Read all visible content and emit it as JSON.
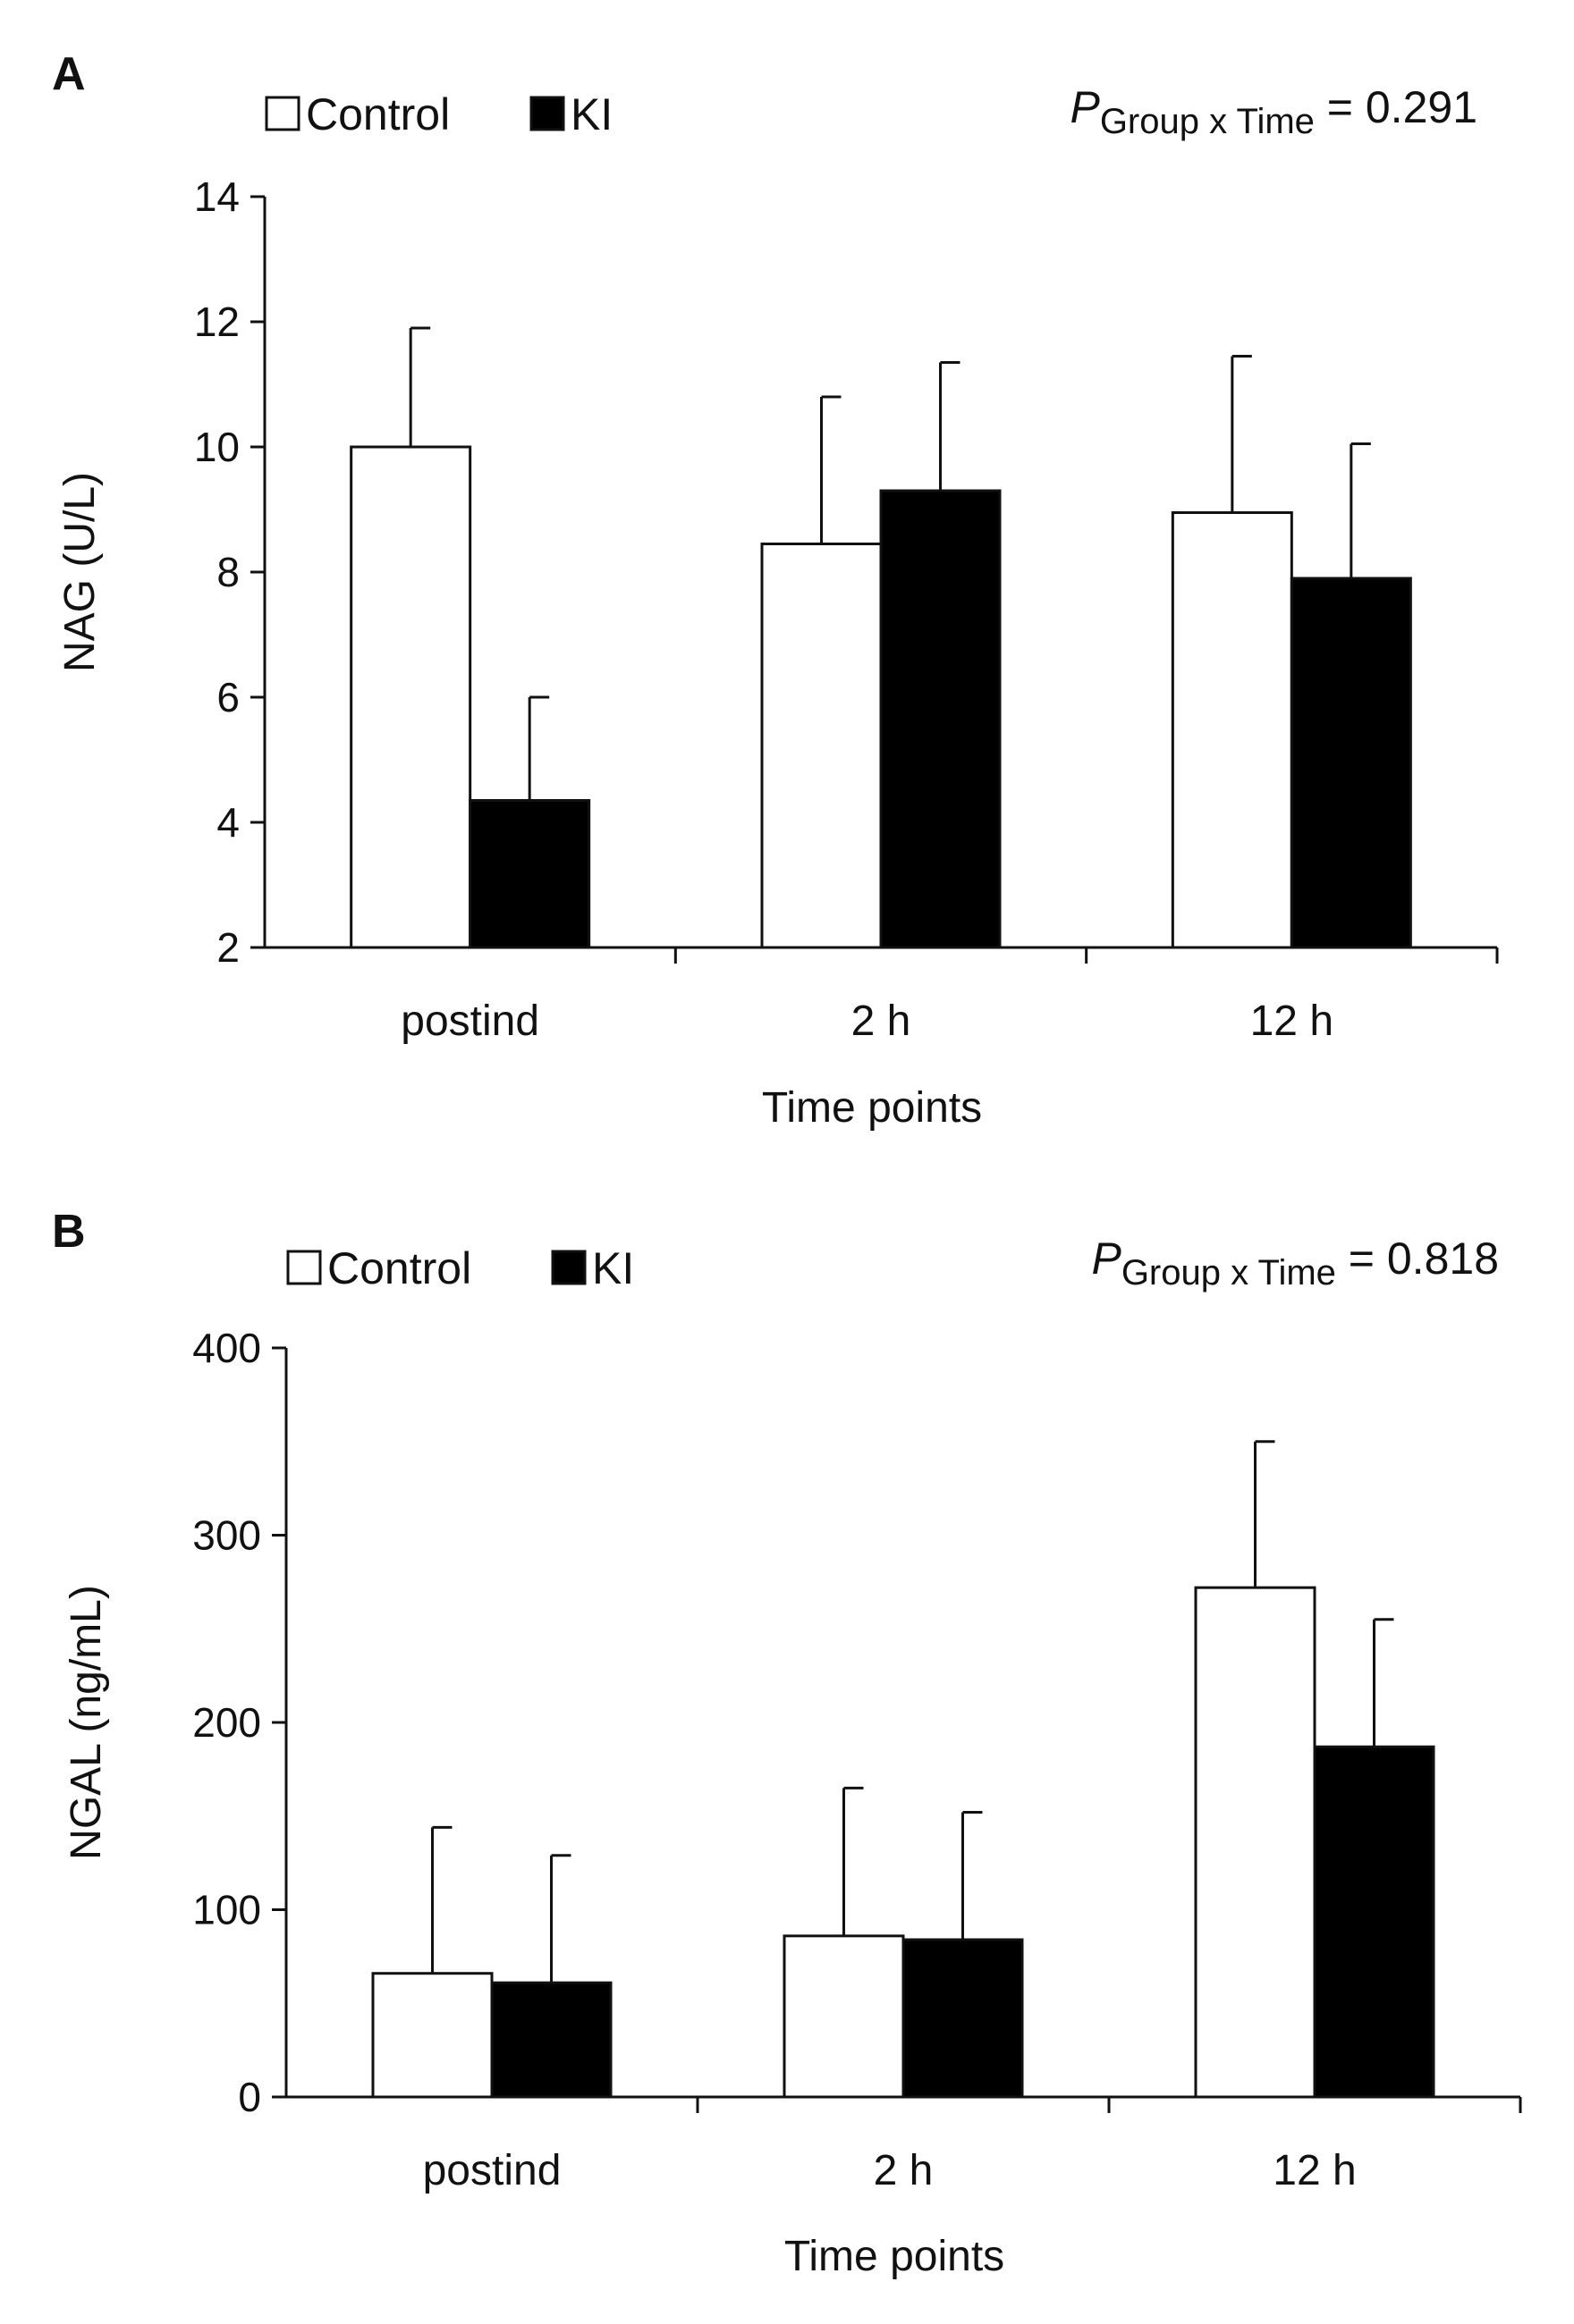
{
  "chart_data": [
    {
      "panel": "A",
      "type": "bar",
      "categories": [
        "postind",
        "2 h",
        "12 h"
      ],
      "series": [
        {
          "name": "Control",
          "values": [
            10.0,
            8.45,
            8.95
          ],
          "errors": [
            1.9,
            2.35,
            2.5
          ],
          "color": "#ffffff"
        },
        {
          "name": "KI",
          "values": [
            4.35,
            9.3,
            7.9
          ],
          "errors": [
            1.65,
            2.05,
            2.15
          ],
          "color": "#000000"
        }
      ],
      "yticks": [
        2,
        4,
        6,
        8,
        10,
        12,
        14
      ],
      "ylim": [
        2,
        14
      ],
      "xlabel": "Time points",
      "ylabel": "NAG (U/L)",
      "legend_placement": "top-left",
      "grid": false,
      "annotation": {
        "symbol": "P",
        "subscript": "Group x Time",
        "rest": "= 0.291"
      }
    },
    {
      "panel": "B",
      "type": "bar",
      "categories": [
        "postind",
        "2 h",
        "12 h"
      ],
      "series": [
        {
          "name": "Control",
          "values": [
            66,
            86,
            272
          ],
          "errors": [
            78,
            79,
            78
          ],
          "color": "#ffffff"
        },
        {
          "name": "KI",
          "values": [
            61,
            84,
            187
          ],
          "errors": [
            68,
            68,
            68
          ],
          "color": "#000000"
        }
      ],
      "yticks": [
        0,
        100,
        200,
        300,
        400
      ],
      "ylim": [
        0,
        400
      ],
      "xlabel": "Time points",
      "ylabel": "NGAL (ng/mL)",
      "legend_placement": "top-left",
      "grid": false,
      "annotation": {
        "symbol": "P",
        "subscript": "Group x Time",
        "rest": "= 0.818"
      }
    }
  ]
}
